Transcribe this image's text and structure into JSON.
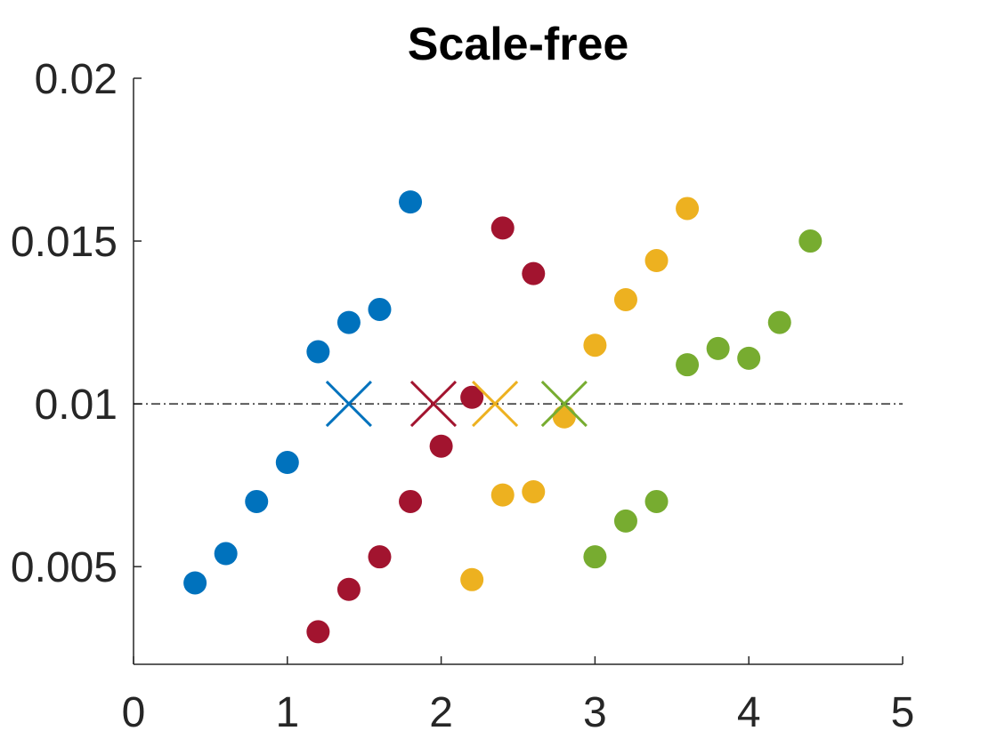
{
  "chart_data": {
    "type": "scatter",
    "title": "Scale-free",
    "xlabel": "",
    "ylabel": "",
    "xlim": [
      0,
      5
    ],
    "ylim": [
      0.002,
      0.02
    ],
    "xticks": [
      0,
      1,
      2,
      3,
      4,
      5
    ],
    "xtick_labels": [
      "0",
      "1",
      "2",
      "3",
      "4",
      "5"
    ],
    "yticks": [
      0.005,
      0.01,
      0.015,
      0.02
    ],
    "ytick_labels": [
      "0.005",
      "0.01",
      "0.015",
      "0.02"
    ],
    "grid": false,
    "legend": "none",
    "reference_line": {
      "y": 0.01,
      "style": "dash-dot",
      "color": "#000000"
    },
    "series": [
      {
        "color": "#0072BD",
        "points": [
          [
            0.4,
            0.0045
          ],
          [
            0.6,
            0.0054
          ],
          [
            0.8,
            0.007
          ],
          [
            1.0,
            0.0082
          ],
          [
            1.2,
            0.0116
          ],
          [
            1.4,
            0.0125
          ],
          [
            1.6,
            0.0129
          ],
          [
            1.8,
            0.0162
          ]
        ],
        "marker": [
          1.4,
          0.01
        ]
      },
      {
        "color": "#A2142F",
        "points": [
          [
            1.2,
            0.003
          ],
          [
            1.4,
            0.0043
          ],
          [
            1.6,
            0.0053
          ],
          [
            1.8,
            0.007
          ],
          [
            2.0,
            0.0087
          ],
          [
            2.2,
            0.0102
          ],
          [
            2.4,
            0.0154
          ],
          [
            2.6,
            0.014
          ]
        ],
        "marker": [
          1.95,
          0.01
        ]
      },
      {
        "color": "#EDB120",
        "points": [
          [
            2.2,
            0.0046
          ],
          [
            2.4,
            0.0072
          ],
          [
            2.6,
            0.0073
          ],
          [
            2.8,
            0.0096
          ],
          [
            3.0,
            0.0118
          ],
          [
            3.2,
            0.0132
          ],
          [
            3.4,
            0.0144
          ],
          [
            3.6,
            0.016
          ]
        ],
        "marker": [
          2.35,
          0.01
        ]
      },
      {
        "color": "#77AC30",
        "points": [
          [
            3.0,
            0.0053
          ],
          [
            3.2,
            0.0064
          ],
          [
            3.4,
            0.007
          ],
          [
            3.6,
            0.0112
          ],
          [
            3.8,
            0.0117
          ],
          [
            4.0,
            0.0114
          ],
          [
            4.2,
            0.0125
          ],
          [
            4.4,
            0.015
          ]
        ],
        "marker": [
          2.8,
          0.01
        ]
      }
    ]
  }
}
